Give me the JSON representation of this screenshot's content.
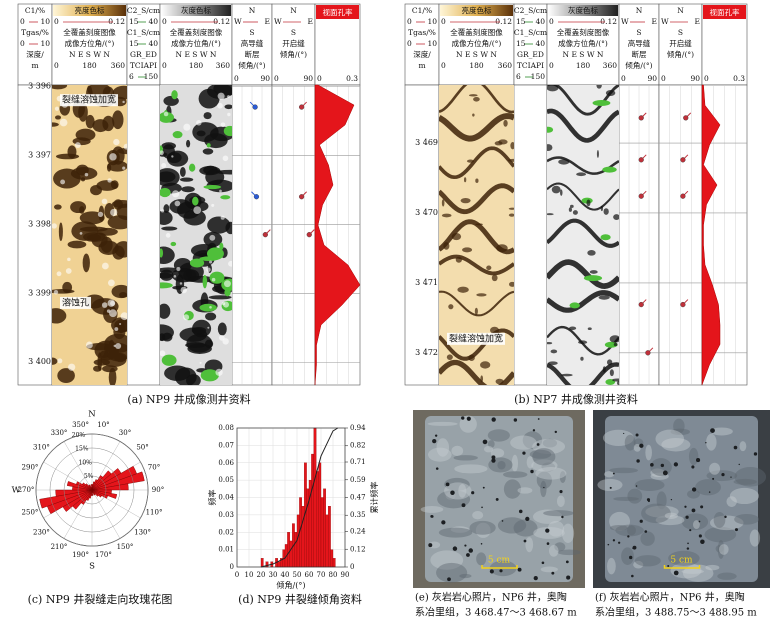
{
  "panels": [
    {
      "caption": "(a) NP9 井成像测井资料",
      "tracks": [
        [
          "C1/%",
          [
            "0",
            "10"
          ],
          "Tgas/%",
          [
            "0",
            "10"
          ],
          "深度/",
          "m"
        ],
        [
          "亮度色标",
          [
            "0",
            "0.12"
          ],
          "全覆盖刻度图像",
          "成像方位角/(°)",
          "N E S W N",
          [
            "0",
            "180",
            "360"
          ]
        ],
        [
          "C2_S/cm",
          [
            "15",
            "40"
          ],
          "C1_S/cm",
          [
            "15",
            "40"
          ],
          "GR_ED",
          "TCIAPI",
          [
            "6",
            "150"
          ]
        ],
        [
          "灰度色标",
          [
            "0",
            "0.12"
          ],
          "全覆盖刻度图像",
          "成像方位角/(°)",
          "N E S W N",
          [
            "0",
            "180",
            "360"
          ]
        ],
        [
          "N",
          [
            "W",
            "E"
          ],
          "S",
          "高导缝",
          "断层",
          "倾角/(°)"
        ],
        [
          "N",
          [
            "W",
            "E"
          ],
          "S",
          "开启缝",
          "倾角/(°)"
        ],
        [
          "视面孔率"
        ]
      ],
      "depth_lim": [
        3395.98,
        3400.33
      ],
      "depth_ticks": [
        {
          "value": 3396,
          "label": "3 396"
        },
        {
          "value": 3397,
          "label": "3 397"
        },
        {
          "value": 3398,
          "label": "3 398"
        },
        {
          "value": 3399,
          "label": "3 399"
        },
        {
          "value": 3400,
          "label": "3 400"
        }
      ],
      "annotations": [
        {
          "text": "裂缝溶蚀加宽",
          "depth": 3396.2
        },
        {
          "text": "溶蚀孔",
          "depth": 3399.14
        }
      ],
      "dip_lim": [
        0,
        90
      ],
      "conductive_dips": [
        {
          "depth": 3396.3,
          "dip": 52,
          "color": "#2a5bd7"
        },
        {
          "depth": 3397.6,
          "dip": 55,
          "color": "#2a5bd7"
        },
        {
          "depth": 3398.15,
          "dip": 75,
          "color": "#c0303a"
        }
      ],
      "open_dips": [
        {
          "depth": 3396.3,
          "dip": 62,
          "color": "#c0303a"
        },
        {
          "depth": 3397.6,
          "dip": 62,
          "color": "#c0303a"
        },
        {
          "depth": 3398.15,
          "dip": 78,
          "color": "#c0303a"
        }
      ],
      "porosity": {
        "lim": [
          0,
          0.3
        ],
        "color": "#e4151b",
        "depths": [
          3395.98,
          3396.27,
          3396.56,
          3396.85,
          3397.14,
          3397.43,
          3397.72,
          3398.01,
          3398.3,
          3398.59,
          3398.88,
          3399.17,
          3399.46,
          3399.75,
          3400.04,
          3400.33
        ],
        "values": [
          0.02,
          0.26,
          0.2,
          0.03,
          0.09,
          0.12,
          0.05,
          0.02,
          0.06,
          0.22,
          0.3,
          0.18,
          0.04,
          0.01,
          0.01,
          0
        ]
      }
    },
    {
      "caption": "(b) NP7 井成像测井资料",
      "tracks": [
        [
          "C1/%",
          [
            "0",
            "10"
          ],
          "Tgas/%",
          [
            "0",
            "10"
          ],
          "深度/",
          "m"
        ],
        [
          "亮度色标",
          [
            "0",
            "0.12"
          ],
          "全覆盖刻度图像",
          "成像方位角/(°)",
          "N E S W N",
          [
            "0",
            "180",
            "360"
          ]
        ],
        [
          "C2_S/cm",
          [
            "15",
            "40"
          ],
          "C1_S/cm",
          [
            "15",
            "40"
          ],
          "GR_ED",
          "TCIAPI",
          [
            "6",
            "150"
          ]
        ],
        [
          "灰度色标",
          [
            "0",
            "0.12"
          ],
          "全覆盖刻度图像",
          "成像方位角/(°)",
          "N E S W N",
          [
            "0",
            "180",
            "360"
          ]
        ],
        [
          "N",
          [
            "W",
            "E"
          ],
          "S",
          "高导缝",
          "断层",
          "倾角/(°)"
        ],
        [
          "N",
          [
            "W",
            "E"
          ],
          "S",
          "开启缝",
          "倾角/(°)"
        ],
        [
          "视面孔率"
        ]
      ],
      "depth_lim": [
        3468.17,
        3472.46
      ],
      "depth_ticks": [
        {
          "value": 3469,
          "label": "3 469"
        },
        {
          "value": 3470,
          "label": "3 470"
        },
        {
          "value": 3471,
          "label": "3 471"
        },
        {
          "value": 3472,
          "label": "3 472"
        }
      ],
      "annotations": [
        {
          "text": "裂缝溶蚀加宽",
          "depth": 3471.8
        }
      ],
      "dip_lim": [
        0,
        90
      ],
      "conductive_dips": [
        {
          "depth": 3468.64,
          "dip": 50,
          "color": "#c0303a"
        },
        {
          "depth": 3469.24,
          "dip": 50,
          "color": "#c0303a"
        },
        {
          "depth": 3469.76,
          "dip": 50,
          "color": "#c0303a"
        },
        {
          "depth": 3471.31,
          "dip": 50,
          "color": "#c0303a"
        },
        {
          "depth": 3472.0,
          "dip": 65,
          "color": "#c0303a"
        }
      ],
      "open_dips": [
        {
          "depth": 3468.64,
          "dip": 56,
          "color": "#c0303a"
        },
        {
          "depth": 3469.24,
          "dip": 50,
          "color": "#c0303a"
        },
        {
          "depth": 3469.76,
          "dip": 50,
          "color": "#c0303a"
        },
        {
          "depth": 3471.31,
          "dip": 50,
          "color": "#c0303a"
        }
      ],
      "porosity": {
        "lim": [
          0,
          0.3
        ],
        "color": "#e4151b",
        "depths": [
          3468.17,
          3468.46,
          3468.74,
          3469.03,
          3469.31,
          3469.6,
          3469.88,
          3470.17,
          3470.46,
          3470.74,
          3471.03,
          3471.31,
          3471.6,
          3471.88,
          3472.17,
          3472.46
        ],
        "values": [
          0.01,
          0.02,
          0.12,
          0.05,
          0.01,
          0.1,
          0.03,
          0.01,
          0.01,
          0.02,
          0.07,
          0.11,
          0.12,
          0.12,
          0.05,
          0
        ]
      }
    }
  ],
  "chart_data": [
    {
      "type": "rose",
      "caption": "(c) NP9 井裂缝走向玫瑰花图",
      "values": [
        2,
        3,
        4,
        6,
        9,
        12,
        17,
        19,
        13,
        7,
        9,
        6,
        4,
        3,
        2,
        2,
        1,
        2,
        2,
        3,
        4,
        6,
        9,
        12,
        17,
        19,
        13,
        7,
        9,
        6,
        4,
        3,
        2,
        2,
        1,
        2
      ],
      "color": "#e4151b",
      "rlim": [
        0,
        20
      ],
      "rticks": [
        {
          "value": 5,
          "label": "5%"
        },
        {
          "value": 10,
          "label": "10%"
        },
        {
          "value": 15,
          "label": "15%"
        },
        {
          "value": 20,
          "label": "20%"
        }
      ],
      "direction_ticks": [
        {
          "value": 10,
          "label": "10°"
        },
        {
          "value": 30,
          "label": "30°"
        },
        {
          "value": 50,
          "label": "50°"
        },
        {
          "value": 70,
          "label": "70°"
        },
        {
          "value": 90,
          "label": "90°"
        },
        {
          "value": 110,
          "label": "110°"
        },
        {
          "value": 130,
          "label": "130°"
        },
        {
          "value": 150,
          "label": "150°"
        },
        {
          "value": 170,
          "label": "170°"
        },
        {
          "value": 190,
          "label": "190°"
        },
        {
          "value": 210,
          "label": "210°"
        },
        {
          "value": 230,
          "label": "230°"
        },
        {
          "value": 250,
          "label": "250°"
        },
        {
          "value": 270,
          "label": "270°"
        },
        {
          "value": 290,
          "label": "290°"
        },
        {
          "value": 310,
          "label": "310°"
        },
        {
          "value": 330,
          "label": "330°"
        },
        {
          "value": 350,
          "label": "350°"
        }
      ],
      "cardinals": [
        {
          "value": 0,
          "label": "N"
        },
        {
          "value": 270,
          "label": "W"
        },
        {
          "value": 180,
          "label": "S"
        }
      ]
    },
    {
      "type": "histogram",
      "caption": "(d) NP9 井裂缝倾角资料",
      "xlabel": "倾角/(°)",
      "ylabel": "频率",
      "y2label": "累计频率",
      "bins": [
        20,
        22,
        24,
        26,
        28,
        30,
        32,
        34,
        36,
        38,
        40,
        42,
        44,
        46,
        48,
        50,
        52,
        54,
        56,
        58,
        60,
        62,
        64,
        66,
        68,
        70,
        72,
        74,
        76,
        78,
        80,
        82
      ],
      "values": [
        0.005,
        0,
        0.003,
        0,
        0.003,
        0,
        0.005,
        0.003,
        0.005,
        0.01,
        0.013,
        0.02,
        0.015,
        0.025,
        0.02,
        0.03,
        0.04,
        0.035,
        0.06,
        0.045,
        0.05,
        0.065,
        0.08,
        0.055,
        0.06,
        0.04,
        0.045,
        0.03,
        0.035,
        0.01,
        0.005
      ],
      "color": "#e4151b",
      "xlim": [
        0,
        90
      ],
      "xticks": [
        0,
        10,
        20,
        30,
        40,
        50,
        60,
        70,
        80,
        90
      ],
      "ylim": [
        0,
        0.08
      ],
      "yticks": [
        0,
        0.01,
        0.02,
        0.03,
        0.04,
        0.05,
        0.06,
        0.07,
        0.08
      ],
      "y2lim": [
        0,
        0.94
      ],
      "y2ticks": [
        0,
        0.12,
        0.24,
        0.35,
        0.47,
        0.59,
        0.71,
        0.82,
        0.94
      ],
      "grid": true,
      "cumulative": {
        "x": [
          20,
          30,
          40,
          50,
          60,
          70,
          80,
          84
        ],
        "values": [
          0,
          0.02,
          0.06,
          0.18,
          0.45,
          0.75,
          0.92,
          0.94
        ],
        "axis": "y2",
        "color": "#222222"
      }
    }
  ],
  "photos": [
    {
      "caption_lines": [
        "(e) 灰岩岩心照片，NP6 井，奥陶",
        "系冶里组，3 468.47～3 468.67 m"
      ],
      "scale_label": "5 cm"
    },
    {
      "caption_lines": [
        "(f) 灰岩岩心照片，NP6 井，奥陶",
        "系冶里组，3 488.75～3 488.95 m"
      ],
      "scale_label": "5 cm"
    }
  ]
}
